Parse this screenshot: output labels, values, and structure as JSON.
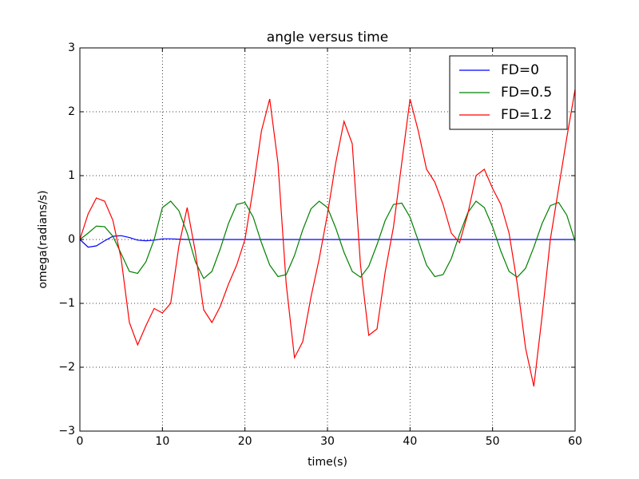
{
  "chart_data": {
    "type": "line",
    "title": "angle versus time",
    "xlabel": "time(s)",
    "ylabel": "omega(radians/s)",
    "x": [
      0,
      1,
      2,
      3,
      4,
      5,
      6,
      7,
      8,
      9,
      10,
      11,
      12,
      13,
      14,
      15,
      16,
      17,
      18,
      19,
      20,
      21,
      22,
      23,
      24,
      25,
      26,
      27,
      28,
      29,
      30,
      31,
      32,
      33,
      34,
      35,
      36,
      37,
      38,
      39,
      40,
      41,
      42,
      43,
      44,
      45,
      46,
      47,
      48,
      49,
      50,
      51,
      52,
      53,
      54,
      55,
      56,
      57,
      58,
      59,
      60
    ],
    "series": [
      {
        "name": "FD=0",
        "color": "#0000ff",
        "values": [
          0,
          -0.12,
          -0.1,
          -0.02,
          0.05,
          0.06,
          0.03,
          -0.01,
          -0.02,
          -0.01,
          0.01,
          0.01,
          0.005,
          0,
          0,
          0,
          0,
          0,
          0,
          0,
          0,
          0,
          0,
          0,
          0,
          0,
          0,
          0,
          0,
          0,
          0,
          0,
          0,
          0,
          0,
          0,
          0,
          0,
          0,
          0,
          0,
          0,
          0,
          0,
          0,
          0,
          0,
          0,
          0,
          0,
          0,
          0,
          0,
          0,
          0,
          0,
          0,
          0,
          0,
          0,
          0
        ]
      },
      {
        "name": "FD=0.5",
        "color": "#008000",
        "values": [
          0,
          0.1,
          0.21,
          0.2,
          0.05,
          -0.22,
          -0.5,
          -0.53,
          -0.35,
          0.0,
          0.5,
          0.6,
          0.45,
          0.1,
          -0.35,
          -0.61,
          -0.5,
          -0.15,
          0.25,
          0.55,
          0.58,
          0.35,
          -0.05,
          -0.4,
          -0.58,
          -0.55,
          -0.25,
          0.15,
          0.48,
          0.6,
          0.5,
          0.18,
          -0.2,
          -0.5,
          -0.59,
          -0.42,
          -0.08,
          0.3,
          0.55,
          0.57,
          0.35,
          -0.02,
          -0.4,
          -0.58,
          -0.55,
          -0.3,
          0.08,
          0.42,
          0.6,
          0.5,
          0.2,
          -0.18,
          -0.5,
          -0.59,
          -0.45,
          -0.12,
          0.25,
          0.53,
          0.58,
          0.38,
          -0.03
        ]
      },
      {
        "name": "FD=1.2",
        "color": "#ff0000",
        "values": [
          0,
          0.4,
          0.65,
          0.6,
          0.3,
          -0.3,
          -1.3,
          -1.65,
          -1.35,
          -1.08,
          -1.15,
          -1.0,
          -0.1,
          0.5,
          -0.2,
          -1.1,
          -1.3,
          -1.05,
          -0.7,
          -0.4,
          0.0,
          0.8,
          1.7,
          2.2,
          1.2,
          -0.7,
          -1.85,
          -1.6,
          -0.9,
          -0.3,
          0.4,
          1.2,
          1.85,
          1.5,
          -0.4,
          -1.5,
          -1.4,
          -0.5,
          0.2,
          1.2,
          2.2,
          1.7,
          1.1,
          0.9,
          0.55,
          0.1,
          -0.05,
          0.4,
          1.0,
          1.1,
          0.8,
          0.55,
          0.1,
          -0.7,
          -1.7,
          -2.3,
          -1.2,
          0.0,
          0.8,
          1.6,
          2.35
        ]
      }
    ],
    "xlim": [
      0,
      60
    ],
    "xticks": [
      0,
      10,
      20,
      30,
      40,
      50,
      60
    ],
    "ylim": [
      -3,
      3
    ],
    "yticks": [
      {
        "value": -3,
        "label": "−3"
      },
      {
        "value": -2,
        "label": "−2"
      },
      {
        "value": -1,
        "label": "−1"
      },
      0,
      1,
      2,
      3
    ],
    "grid": true,
    "legend": "upper right"
  }
}
